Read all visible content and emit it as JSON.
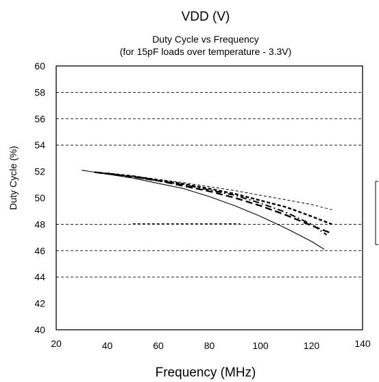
{
  "chart_data": {
    "type": "line",
    "header": "VDD (V)",
    "title": "Duty Cycle vs Frequency",
    "subtitle": "(for 15pF loads over temperature - 3.3V)",
    "xlabel": "Frequency (MHz)",
    "ylabel": "Duty Cycle (%)",
    "xlim": [
      20,
      140
    ],
    "ylim": [
      40,
      60
    ],
    "x_ticks": [
      "20",
      "40",
      "60",
      "80",
      "100",
      "120",
      "140"
    ],
    "y_ticks": [
      "40",
      "42",
      "44",
      "46",
      "48",
      "50",
      "52",
      "54",
      "56",
      "58",
      "60"
    ],
    "grid": {
      "style": "dashed",
      "y_values": [
        44,
        46,
        48,
        54,
        56,
        58
      ]
    },
    "series": [
      {
        "style": "solid-thin",
        "x": [
          30,
          40,
          50,
          60,
          70,
          80,
          90,
          100,
          110,
          120,
          125
        ],
        "y": [
          52.1,
          51.8,
          51.5,
          51.1,
          50.7,
          50.1,
          49.4,
          48.6,
          47.7,
          46.7,
          46.1
        ]
      },
      {
        "style": "dash-long",
        "x": [
          35,
          50,
          60,
          70,
          80,
          90,
          100,
          110,
          120,
          128
        ],
        "y": [
          51.95,
          51.6,
          51.3,
          50.9,
          50.5,
          50.0,
          49.4,
          48.7,
          47.9,
          47.3
        ]
      },
      {
        "style": "dash-dot",
        "x": [
          37,
          50,
          60,
          70,
          80,
          90,
          100,
          110,
          120,
          126
        ],
        "y": [
          51.9,
          51.6,
          51.3,
          51.0,
          50.6,
          50.2,
          49.6,
          48.9,
          48.0,
          47.2
        ]
      },
      {
        "style": "dash-bold",
        "x": [
          37,
          50,
          60,
          70,
          80,
          90,
          100,
          110,
          120,
          128
        ],
        "y": [
          51.9,
          51.65,
          51.35,
          51.05,
          50.7,
          50.3,
          49.8,
          49.3,
          48.6,
          48.0
        ]
      },
      {
        "style": "dash-fine",
        "x": [
          40,
          50,
          60,
          70,
          80,
          90,
          100,
          110,
          120,
          128
        ],
        "y": [
          51.9,
          51.65,
          51.4,
          51.15,
          50.85,
          50.55,
          50.2,
          49.85,
          49.5,
          49.1
        ]
      }
    ]
  }
}
